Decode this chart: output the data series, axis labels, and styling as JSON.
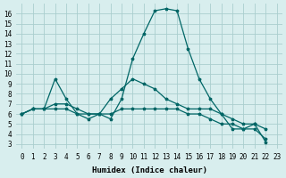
{
  "xlabel": "Humidex (Indice chaleur)",
  "background_color": "#d8eeee",
  "grid_color": "#aacece",
  "line_color": "#006666",
  "xlim": [
    -0.5,
    23.5
  ],
  "ylim": [
    2.5,
    17.0
  ],
  "yticks": [
    3,
    4,
    5,
    6,
    7,
    8,
    9,
    10,
    11,
    12,
    13,
    14,
    15,
    16
  ],
  "xtick_labels": [
    "0",
    "1",
    "2",
    "3",
    "4",
    "5",
    "6",
    "7",
    "8",
    "9",
    "10",
    "11",
    "12",
    "13",
    "14",
    "15",
    "16",
    "17",
    "18",
    "19",
    "20",
    "21",
    "22",
    "23"
  ],
  "series": [
    [
      6.0,
      6.5,
      6.5,
      9.5,
      7.5,
      6.0,
      5.5,
      6.0,
      5.5,
      7.5,
      11.5,
      14.0,
      16.3,
      16.5,
      16.3,
      12.5,
      9.5,
      7.5,
      6.0,
      4.5,
      4.5,
      5.0,
      3.2
    ],
    [
      6.0,
      6.5,
      6.5,
      7.0,
      7.0,
      6.5,
      6.0,
      6.0,
      7.5,
      8.5,
      9.5,
      9.0,
      8.5,
      7.5,
      7.0,
      6.5,
      6.5,
      6.5,
      6.0,
      5.5,
      5.0,
      5.0,
      4.5
    ],
    [
      6.0,
      6.5,
      6.5,
      6.5,
      6.5,
      6.0,
      6.0,
      6.0,
      6.0,
      6.5,
      6.5,
      6.5,
      6.5,
      6.5,
      6.5,
      6.0,
      6.0,
      5.5,
      5.0,
      5.0,
      4.5,
      4.5,
      3.5
    ]
  ]
}
